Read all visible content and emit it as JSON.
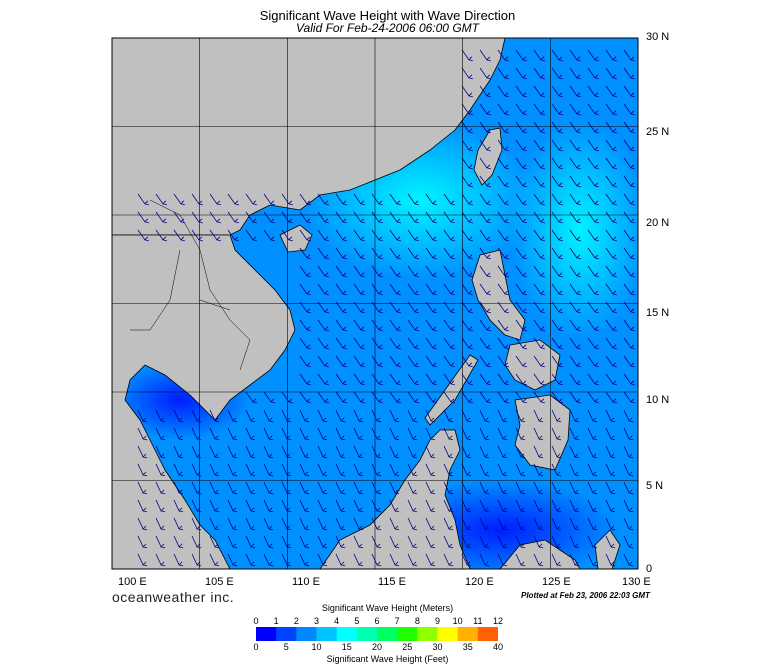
{
  "title": "Significant Wave Height with Wave Direction",
  "subtitle": "Valid For Feb-24-2006 06:00 GMT",
  "lat_labels": [
    "30 N",
    "25 N",
    "20 N",
    "15 N",
    "10 N",
    "5 N",
    "0"
  ],
  "lon_labels": [
    "100 E",
    "105 E",
    "110 E",
    "115 E",
    "120 E",
    "125 E",
    "130 E"
  ],
  "brand": "oceanweather inc.",
  "plotted_text": "Plotted at Feb 23, 2006 22:03 GMT",
  "colorbar": {
    "meters_title": "Significant Wave Height (Meters)",
    "feet_title": "Significant Wave Height (Feet)",
    "meters_ticks": [
      "0",
      "1",
      "2",
      "3",
      "4",
      "5",
      "6",
      "7",
      "8",
      "9",
      "10",
      "11",
      "12"
    ],
    "feet_ticks": [
      "0",
      "5",
      "10",
      "15",
      "20",
      "25",
      "30",
      "35",
      "40"
    ],
    "colors": [
      "#0000ff",
      "#0044ff",
      "#0088ff",
      "#00c4ff",
      "#00ffff",
      "#00ffb0",
      "#00ff60",
      "#20ff00",
      "#90ff00",
      "#ffff00",
      "#ffb000",
      "#ff6000",
      "#ff0000"
    ]
  },
  "colors": {
    "land": "#c0c0c0",
    "ocean_low": "#0066ff",
    "ocean_mid": "#0099ff",
    "ocean_high": "#00ddff",
    "arrow": "#000080"
  }
}
